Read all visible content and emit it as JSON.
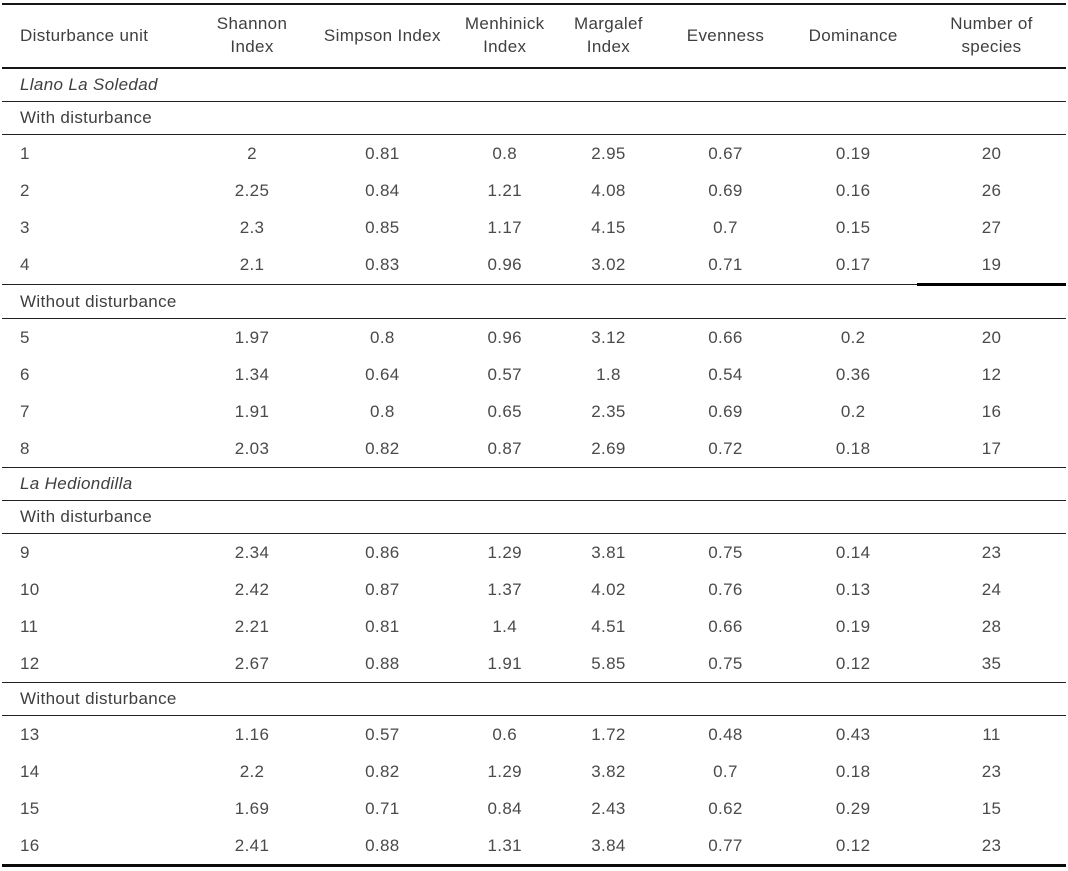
{
  "chart_data": {
    "type": "table",
    "columns": [
      "Disturbance unit",
      "Shannon\nIndex",
      "Simpson Index",
      "Menhinick\nIndex",
      "Margalef\nIndex",
      "Evenness",
      "Dominance",
      "Number of\nspecies"
    ],
    "sections": [
      {
        "site": "Llano La Soledad",
        "groups": [
          {
            "label": "With disturbance",
            "rows": [
              {
                "cells": [
                  "1",
                  "2",
                  "0.81",
                  "0.8",
                  "2.95",
                  "0.67",
                  "0.19",
                  "20"
                ]
              },
              {
                "cells": [
                  "2",
                  "2.25",
                  "0.84",
                  "1.21",
                  "4.08",
                  "0.69",
                  "0.16",
                  "26"
                ]
              },
              {
                "cells": [
                  "3",
                  "2.3",
                  "0.85",
                  "1.17",
                  "4.15",
                  "0.7",
                  "0.15",
                  "27"
                ]
              },
              {
                "cells": [
                  "4",
                  "2.1",
                  "0.83",
                  "0.96",
                  "3.02",
                  "0.71",
                  "0.17",
                  "19"
                ],
                "thick_last_cell_underline": true
              }
            ]
          },
          {
            "label": "Without disturbance",
            "rows": [
              {
                "cells": [
                  "5",
                  "1.97",
                  "0.8",
                  "0.96",
                  "3.12",
                  "0.66",
                  "0.2",
                  "20"
                ]
              },
              {
                "cells": [
                  "6",
                  "1.34",
                  "0.64",
                  "0.57",
                  "1.8",
                  "0.54",
                  "0.36",
                  "12"
                ]
              },
              {
                "cells": [
                  "7",
                  "1.91",
                  "0.8",
                  "0.65",
                  "2.35",
                  "0.69",
                  "0.2",
                  "16"
                ]
              },
              {
                "cells": [
                  "8",
                  "2.03",
                  "0.82",
                  "0.87",
                  "2.69",
                  "0.72",
                  "0.18",
                  "17"
                ]
              }
            ]
          }
        ]
      },
      {
        "site": "La Hediondilla",
        "groups": [
          {
            "label": "With disturbance",
            "rows": [
              {
                "cells": [
                  "9",
                  "2.34",
                  "0.86",
                  "1.29",
                  "3.81",
                  "0.75",
                  "0.14",
                  "23"
                ]
              },
              {
                "cells": [
                  "10",
                  "2.42",
                  "0.87",
                  "1.37",
                  "4.02",
                  "0.76",
                  "0.13",
                  "24"
                ]
              },
              {
                "cells": [
                  "11",
                  "2.21",
                  "0.81",
                  "1.4",
                  "4.51",
                  "0.66",
                  "0.19",
                  "28"
                ]
              },
              {
                "cells": [
                  "12",
                  "2.67",
                  "0.88",
                  "1.91",
                  "5.85",
                  "0.75",
                  "0.12",
                  "35"
                ]
              }
            ]
          },
          {
            "label": "Without disturbance",
            "rows": [
              {
                "cells": [
                  "13",
                  "1.16",
                  "0.57",
                  "0.6",
                  "1.72",
                  "0.48",
                  "0.43",
                  "11"
                ]
              },
              {
                "cells": [
                  "14",
                  "2.2",
                  "0.82",
                  "1.29",
                  "3.82",
                  "0.7",
                  "0.18",
                  "23"
                ]
              },
              {
                "cells": [
                  "15",
                  "1.69",
                  "0.71",
                  "0.84",
                  "2.43",
                  "0.62",
                  "0.29",
                  "15"
                ]
              },
              {
                "cells": [
                  "16",
                  "2.41",
                  "0.88",
                  "1.31",
                  "3.84",
                  "0.77",
                  "0.12",
                  "23"
                ]
              }
            ]
          }
        ]
      }
    ],
    "colors": {
      "text": "#474747",
      "rule_line": "#161616"
    }
  }
}
